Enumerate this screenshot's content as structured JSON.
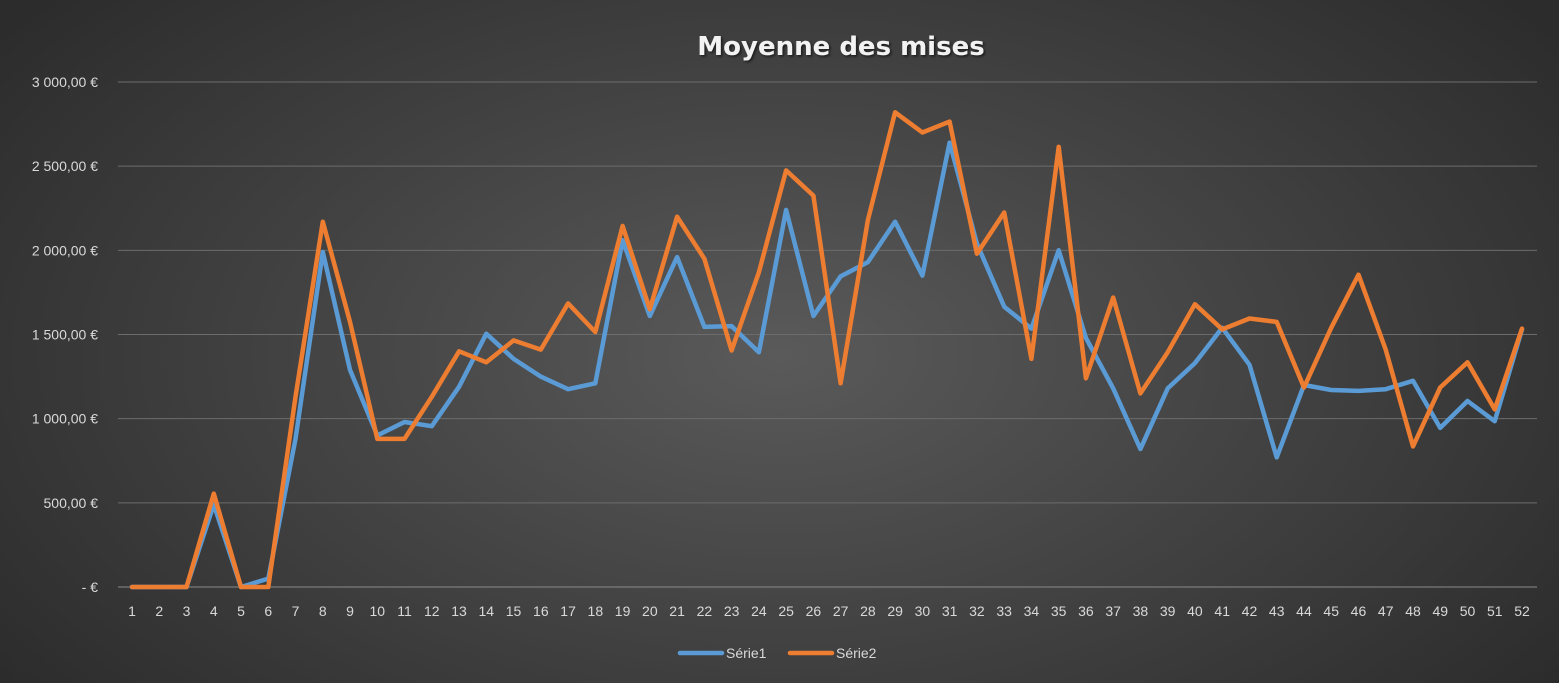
{
  "chart_data": {
    "type": "line",
    "title": "Moyenne des mises",
    "xlabel": "",
    "ylabel": "",
    "x": [
      1,
      2,
      3,
      4,
      5,
      6,
      7,
      8,
      9,
      10,
      11,
      12,
      13,
      14,
      15,
      16,
      17,
      18,
      19,
      20,
      21,
      22,
      23,
      24,
      25,
      26,
      27,
      28,
      29,
      30,
      31,
      32,
      33,
      34,
      35,
      36,
      37,
      38,
      39,
      40,
      41,
      42,
      43,
      44,
      45,
      46,
      47,
      48,
      49,
      50,
      51,
      52
    ],
    "x_tick_labels": [
      "1",
      "2",
      "3",
      "4",
      "5",
      "6",
      "7",
      "8",
      "9",
      "10",
      "11",
      "12",
      "13",
      "14",
      "15",
      "16",
      "17",
      "18",
      "19",
      "20",
      "21",
      "22",
      "23",
      "24",
      "25",
      "26",
      "27",
      "28",
      "29",
      "30",
      "31",
      "32",
      "33",
      "34",
      "35",
      "36",
      "37",
      "38",
      "39",
      "40",
      "41",
      "42",
      "43",
      "44",
      "45",
      "46",
      "47",
      "48",
      "49",
      "50",
      "51",
      "52"
    ],
    "ylim": [
      0,
      3000
    ],
    "y_ticks": [
      0,
      500,
      1000,
      1500,
      2000,
      2500,
      3000
    ],
    "y_tick_labels": [
      "-  €",
      "500,00 €",
      "1 000,00 €",
      "1 500,00 €",
      "2 000,00 €",
      "2 500,00 €",
      "3 000,00 €"
    ],
    "grid": true,
    "legend_position": "bottom",
    "series": [
      {
        "name": "Série1",
        "color": "#5b9bd5",
        "values": [
          0,
          0,
          0,
          490,
          0,
          50,
          880,
          1990,
          1290,
          900,
          980,
          955,
          1190,
          1505,
          1355,
          1250,
          1175,
          1210,
          2060,
          1610,
          1960,
          1545,
          1550,
          1395,
          2240,
          1610,
          1845,
          1930,
          2170,
          1850,
          2640,
          2040,
          1665,
          1535,
          2000,
          1480,
          1180,
          820,
          1180,
          1330,
          1540,
          1320,
          770,
          1200,
          1170,
          1165,
          1175,
          1225,
          945,
          1105,
          985,
          1530
        ]
      },
      {
        "name": "Série2",
        "color": "#ed7d31",
        "values": [
          0,
          0,
          0,
          555,
          0,
          0,
          1130,
          2170,
          1575,
          880,
          880,
          1130,
          1400,
          1335,
          1465,
          1410,
          1685,
          1515,
          2145,
          1650,
          2200,
          1950,
          1405,
          1870,
          2475,
          2325,
          1210,
          2180,
          2820,
          2700,
          2765,
          1980,
          2225,
          1355,
          2615,
          1240,
          1720,
          1150,
          1395,
          1680,
          1530,
          1595,
          1575,
          1185,
          1540,
          1855,
          1410,
          835,
          1185,
          1335,
          1055,
          1535
        ]
      }
    ]
  }
}
